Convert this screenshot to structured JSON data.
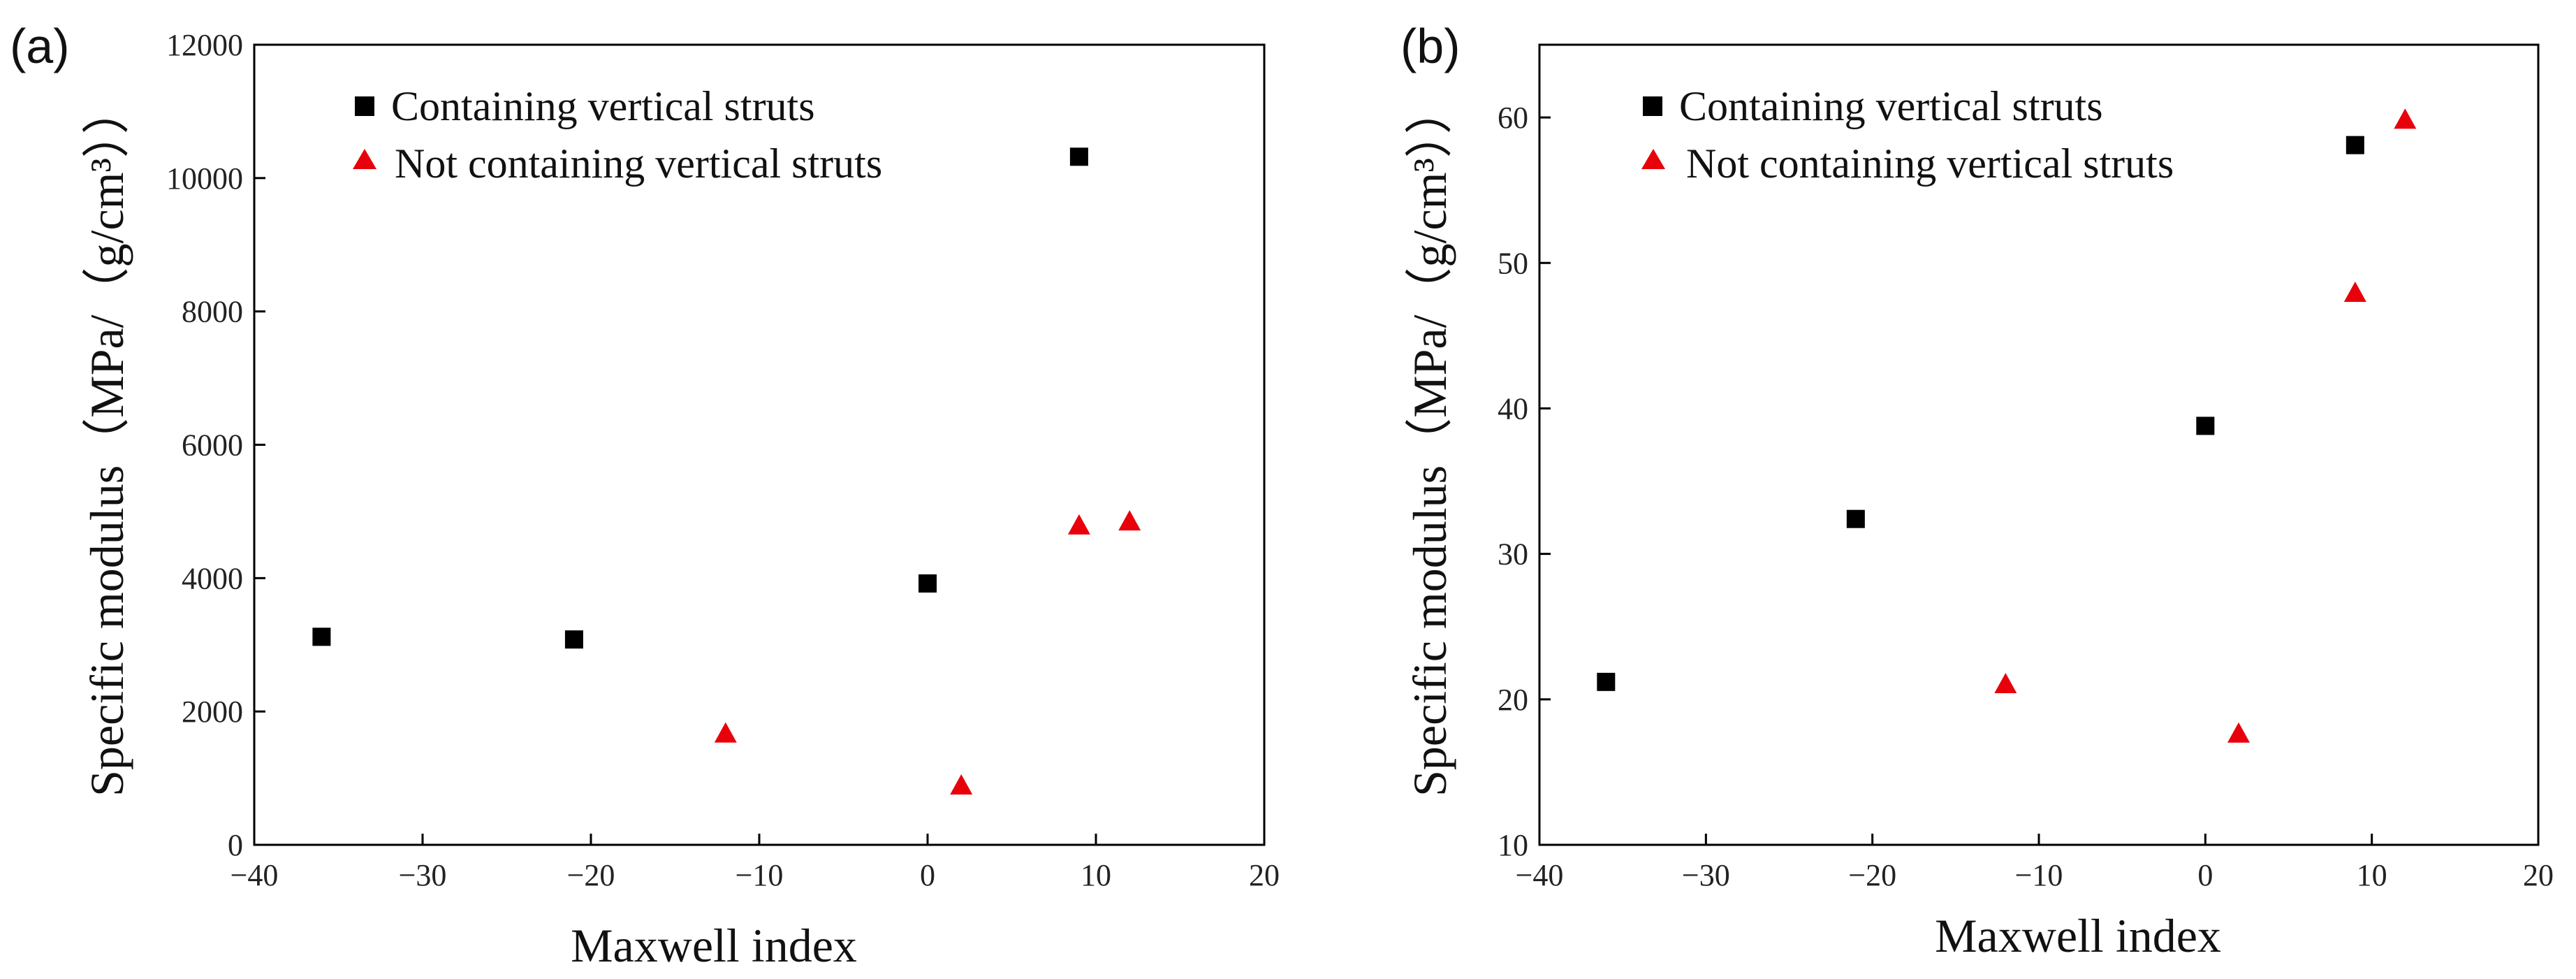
{
  "chart_data": [
    {
      "type": "scatter",
      "panel_label": "(a)",
      "xlabel": "Maxwell index",
      "ylabel": "Specific modulus（MPa/（g/cm³））",
      "xlim": [
        -40,
        20
      ],
      "ylim": [
        0,
        12000
      ],
      "xticks": [
        -40,
        -30,
        -20,
        -10,
        0,
        10,
        20
      ],
      "xtick_labels": [
        "−40",
        "−30",
        "−20",
        "−10",
        "0",
        "10",
        "20"
      ],
      "yticks": [
        0,
        2000,
        4000,
        6000,
        8000,
        10000,
        12000
      ],
      "ytick_labels": [
        "0",
        "2000",
        "4000",
        "6000",
        "8000",
        "10000",
        "12000"
      ],
      "legend_position": "top-left",
      "series": [
        {
          "name": "Containing vertical struts",
          "marker": "square",
          "color": "#000000",
          "x": [
            -36,
            -21,
            0,
            9
          ],
          "y": [
            3120,
            3080,
            3920,
            10320
          ]
        },
        {
          "name": "Not containing vertical struts",
          "marker": "triangle",
          "color": "#e8000b",
          "x": [
            -12,
            2,
            9,
            12
          ],
          "y": [
            1660,
            880,
            4780,
            4840
          ]
        }
      ]
    },
    {
      "type": "scatter",
      "panel_label": "(b)",
      "xlabel": "Maxwell index",
      "ylabel": "Specific modulus（MPa/（g/cm³））",
      "xlim": [
        -40,
        20
      ],
      "ylim": [
        10,
        65
      ],
      "xticks": [
        -40,
        -30,
        -20,
        -10,
        0,
        10,
        20
      ],
      "xtick_labels": [
        "−40",
        "−30",
        "−20",
        "−10",
        "0",
        "10",
        "20"
      ],
      "yticks": [
        10,
        20,
        30,
        40,
        50,
        60
      ],
      "ytick_labels": [
        "10",
        "20",
        "30",
        "40",
        "50",
        "60"
      ],
      "legend_position": "top-left",
      "series": [
        {
          "name": "Containing vertical struts",
          "marker": "square",
          "color": "#000000",
          "x": [
            -36,
            -21,
            0,
            9
          ],
          "y": [
            21.2,
            32.4,
            38.8,
            58.1
          ]
        },
        {
          "name": "Not containing vertical struts",
          "marker": "triangle",
          "color": "#e8000b",
          "x": [
            -12,
            2,
            9,
            12
          ],
          "y": [
            21.0,
            17.6,
            47.9,
            59.8
          ]
        }
      ]
    }
  ]
}
